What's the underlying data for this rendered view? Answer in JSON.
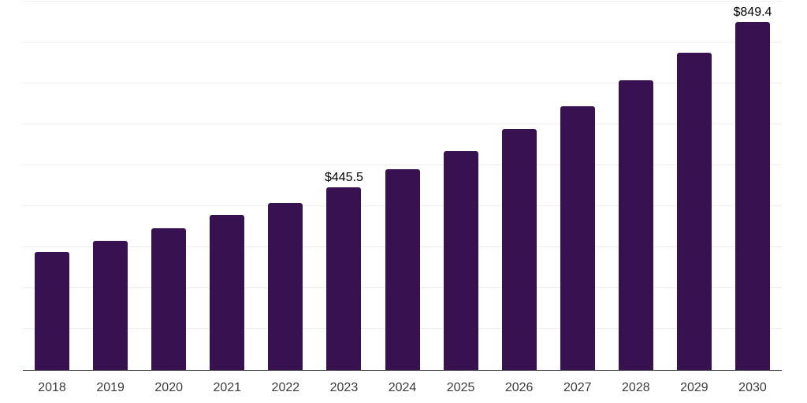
{
  "chart_data": {
    "type": "bar",
    "title": "",
    "xlabel": "",
    "ylabel": "",
    "categories": [
      "2018",
      "2019",
      "2020",
      "2021",
      "2022",
      "2023",
      "2024",
      "2025",
      "2026",
      "2027",
      "2028",
      "2029",
      "2030"
    ],
    "values": [
      288.0,
      316.0,
      345.5,
      378.0,
      408.5,
      445.5,
      491.0,
      535.5,
      589.0,
      644.5,
      707.0,
      775.5,
      849.4
    ],
    "point_labels": {
      "2023": "$445.5",
      "2030": "$849.4"
    },
    "ylim": [
      0,
      904
    ],
    "gridline_step": 100,
    "grid": "horizontal-only",
    "legend": "none",
    "colors": {
      "bar": "#371150",
      "axis_line": "#33313b",
      "gridline": "#ededed",
      "tick_label": "#3b3b3b",
      "data_label": "#000000",
      "background": "#ffffff"
    }
  }
}
